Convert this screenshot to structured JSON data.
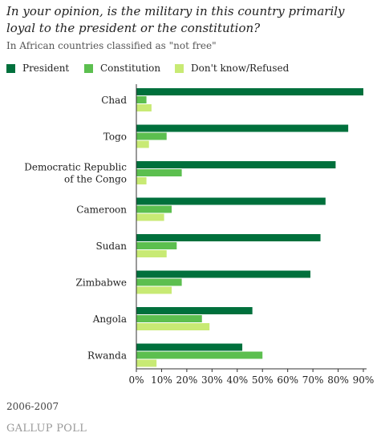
{
  "header": {
    "title": "In your opinion, is the military in this country primarily loyal to the president or the constitution?",
    "subtitle": "In African countries classified as \"not free\""
  },
  "legend": {
    "items": [
      {
        "label": "President",
        "color": "#00703c"
      },
      {
        "label": "Constitution",
        "color": "#5cbf4f"
      },
      {
        "label": "Don't know/Refused",
        "color": "#c8ea74"
      }
    ]
  },
  "chart_data": {
    "type": "bar",
    "orientation": "horizontal",
    "categories": [
      [
        "Chad"
      ],
      [
        "Togo"
      ],
      [
        "Democratic Republic",
        "of the Congo"
      ],
      [
        "Cameroon"
      ],
      [
        "Sudan"
      ],
      [
        "Zimbabwe"
      ],
      [
        "Angola"
      ],
      [
        "Rwanda"
      ]
    ],
    "series": [
      {
        "name": "President",
        "color": "#00703c",
        "values": [
          90,
          84,
          79,
          75,
          73,
          69,
          46,
          42
        ]
      },
      {
        "name": "Constitution",
        "color": "#5cbf4f",
        "values": [
          4,
          12,
          18,
          14,
          16,
          18,
          26,
          50
        ]
      },
      {
        "name": "Don't know/Refused",
        "color": "#c8ea74",
        "values": [
          6,
          5,
          4,
          11,
          12,
          14,
          29,
          8
        ]
      }
    ],
    "xlim": [
      0,
      90
    ],
    "xticks": [
      "0%",
      "10%",
      "20%",
      "30%",
      "40%",
      "50%",
      "60%",
      "70%",
      "80%",
      "90%"
    ],
    "xtick_values": [
      0,
      10,
      20,
      30,
      40,
      50,
      60,
      70,
      80,
      90
    ],
    "grid": false
  },
  "footer": {
    "note": "2006-2007",
    "brand": "GALLUP POLL"
  }
}
